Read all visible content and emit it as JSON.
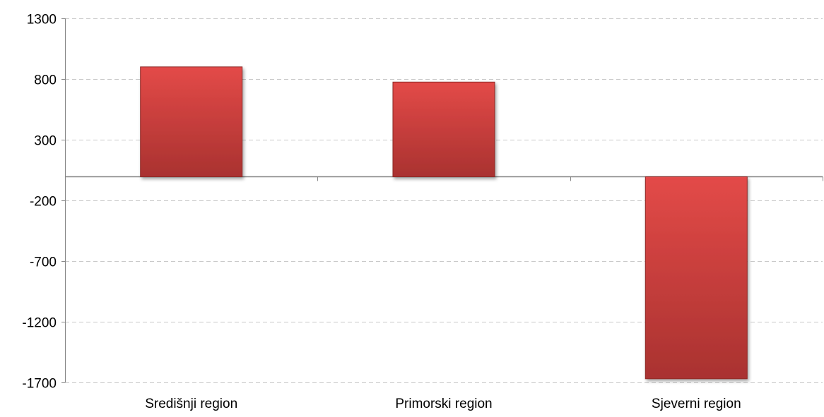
{
  "chart_data": {
    "type": "bar",
    "title": "",
    "xlabel": "",
    "ylabel": "",
    "categories": [
      "Središnji region",
      "Primorski region",
      "Sjeverni region"
    ],
    "values": [
      900,
      775,
      -1670
    ],
    "ylim": [
      -1700,
      1300
    ],
    "yticks": [
      1300,
      800,
      300,
      -200,
      -700,
      -1200,
      -1700
    ],
    "ytick_labels": [
      "1300",
      "800",
      "300",
      "-200",
      "-700",
      "-1200",
      "-1700"
    ],
    "grid": true,
    "gridline_style": "dashed",
    "legend": "none",
    "colors": {
      "bar_light": "#e34a48",
      "bar_dark": "#a93230",
      "bar_edge": "#8e2a28",
      "grid": "#c8c8c8",
      "axis": "#868686"
    }
  }
}
